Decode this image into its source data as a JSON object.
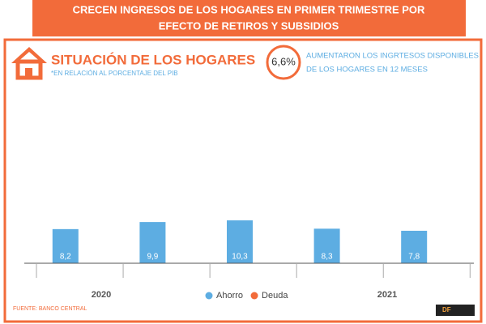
{
  "header": {
    "title_lines": [
      "CRECEN INGRESOS DE LOS HOGARES EN PRIMER TRIMESTRE POR",
      "EFECTO DE RETIROS Y SUBSIDIOS"
    ]
  },
  "chart_data": {
    "type": "bar",
    "title": "SITUACIÓN DE LOS HOGARES",
    "subtitle": "*EN RELACIÓN AL PORCENTAJE DEL PIB",
    "highlight": {
      "value": "6,6%",
      "text_lines": [
        "AUMENTARON LOS INGRTESOS DISPONIBLES",
        "DE LOS HOGARES EN 12 MESES"
      ]
    },
    "categories": [
      null,
      null,
      null,
      null,
      null
    ],
    "x_groups": [
      "2020",
      "2021"
    ],
    "series": [
      {
        "name": "Ahorro",
        "color": "#5dade2",
        "values": [
          8.2,
          9.9,
          10.3,
          8.3,
          7.8
        ],
        "value_labels": [
          "8,2",
          "9,9",
          "10,3",
          "8,3",
          "7,8"
        ]
      },
      {
        "name": "Deuda",
        "color": "#f26b3a",
        "values": [
          null,
          null,
          null,
          null,
          null
        ]
      }
    ],
    "ylim": [
      0,
      50
    ],
    "source": "FUENTE: BANCO CENTRAL",
    "logo": "DF"
  }
}
